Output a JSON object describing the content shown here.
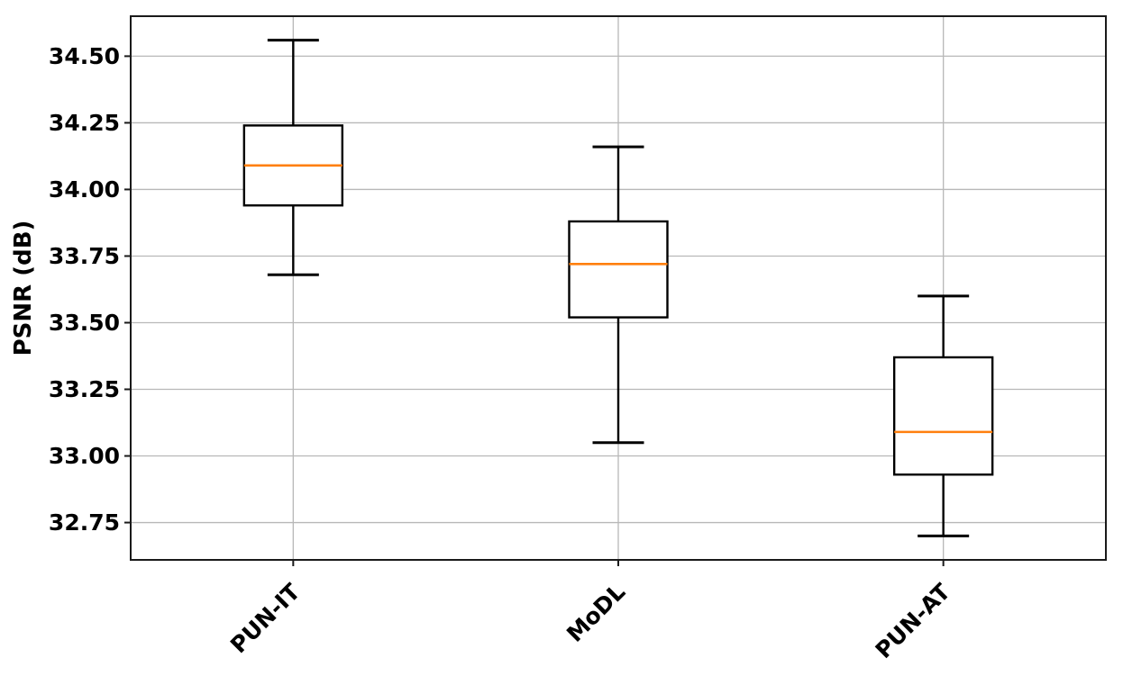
{
  "chart_data": {
    "type": "boxplot",
    "title": "",
    "xlabel": "",
    "ylabel": "PSNR (dB)",
    "categories": [
      "PUN-IT",
      "MoDL",
      "PUN-AT"
    ],
    "series": [
      {
        "name": "PUN-IT",
        "whisker_low": 33.68,
        "q1": 33.94,
        "median": 34.09,
        "q3": 34.24,
        "whisker_high": 34.56
      },
      {
        "name": "MoDL",
        "whisker_low": 33.05,
        "q1": 33.52,
        "median": 33.72,
        "q3": 33.88,
        "whisker_high": 34.16
      },
      {
        "name": "PUN-AT",
        "whisker_low": 32.7,
        "q1": 32.93,
        "median": 33.09,
        "q3": 33.37,
        "whisker_high": 33.6
      }
    ],
    "yticks": [
      32.75,
      33.0,
      33.25,
      33.5,
      33.75,
      34.0,
      34.25,
      34.5
    ],
    "ytick_labels": [
      "32.75",
      "33.00",
      "33.25",
      "33.50",
      "33.75",
      "34.00",
      "34.25",
      "34.50"
    ],
    "ylim": [
      32.61,
      34.65
    ],
    "grid": "both",
    "legend": "none",
    "x_label_rotation": 45,
    "colors": {
      "median": "#ff7f0e",
      "box_edge": "#000000",
      "whisker": "#000000",
      "grid": "#b8b8b8",
      "plot_border": "#1a1a1a",
      "background": "#ffffff",
      "box_fill": "#ffffff",
      "text": "#000000"
    }
  }
}
